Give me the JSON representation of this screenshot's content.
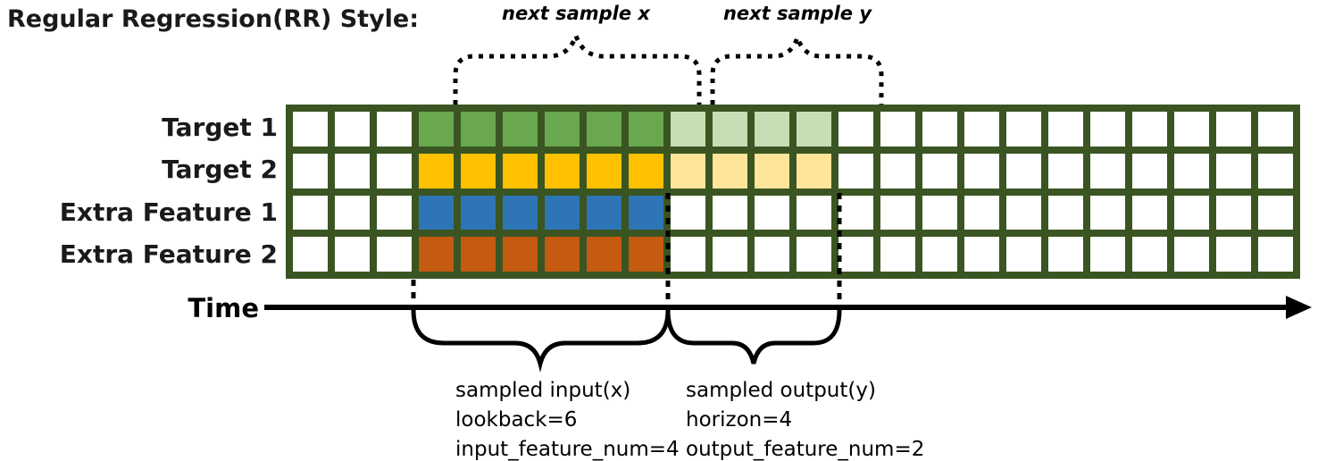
{
  "title": "Regular Regression(RR) Style:",
  "colors": {
    "grid_border": "#3a5522",
    "line_color": "#000000",
    "cell_default": "#ffffff"
  },
  "grid": {
    "columns": 24,
    "input_start_col": 3,
    "input_end_col": 8,
    "output_start_col": 9,
    "output_end_col": 12,
    "rows": [
      {
        "label": "Target 1",
        "input_color": "#6aa84f",
        "output_color": "#c5deb5"
      },
      {
        "label": "Target 2",
        "input_color": "#ffc000",
        "output_color": "#ffe599"
      },
      {
        "label": "Extra Feature 1",
        "input_color": "#2e75b6",
        "output_color": null
      },
      {
        "label": "Extra Feature 2",
        "input_color": "#c55a11",
        "output_color": null
      }
    ]
  },
  "annotations": {
    "next_sample_x": "next sample x",
    "next_sample_y": "next sample y",
    "time_label": "Time",
    "input_block": [
      "sampled input(x)",
      "lookback=6",
      "input_feature_num=4"
    ],
    "output_block": [
      "sampled output(y)",
      "horizon=4",
      "output_feature_num=2"
    ]
  }
}
